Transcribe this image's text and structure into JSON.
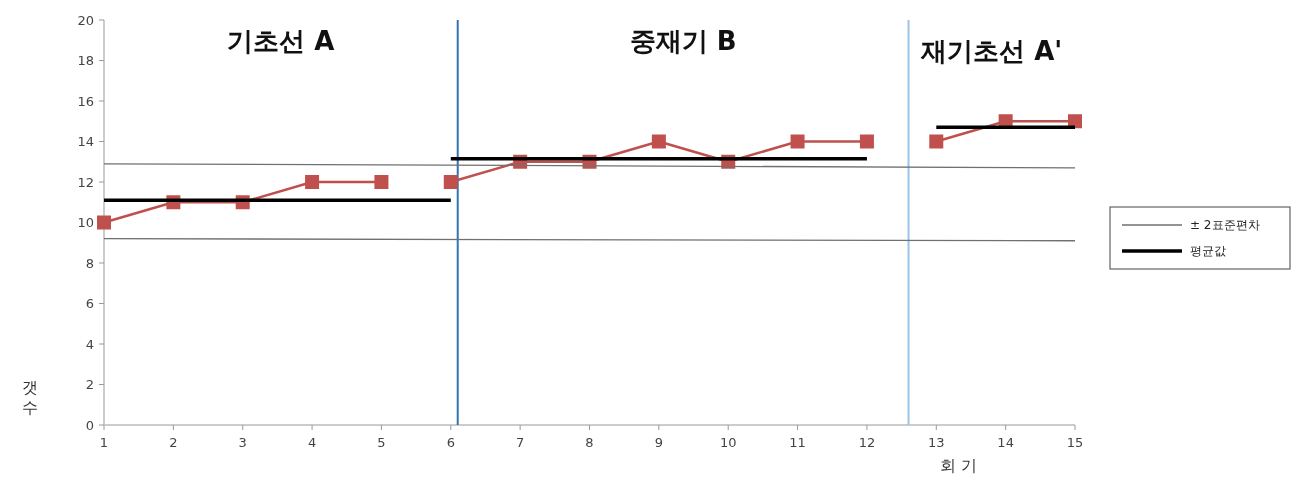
{
  "chart_data": {
    "type": "line",
    "xlabel": "회 기",
    "ylabel": "갯수",
    "xlim": [
      1,
      15
    ],
    "xticks": [
      1,
      2,
      3,
      4,
      5,
      6,
      7,
      8,
      9,
      10,
      11,
      12,
      13,
      14,
      15
    ],
    "ylim": [
      0,
      20
    ],
    "yticks": [
      0,
      2,
      4,
      6,
      8,
      10,
      12,
      14,
      16,
      18,
      20
    ],
    "grid": false,
    "legend": "right",
    "line_style": "solid",
    "series": [
      {
        "color": "#c0504d",
        "marker": "square",
        "x": [
          1,
          2,
          3,
          4,
          5
        ],
        "values": [
          10,
          11,
          11,
          12,
          12
        ]
      },
      {
        "color": "#c0504d",
        "marker": "square",
        "x": [
          6,
          7,
          8,
          9,
          10,
          11,
          12
        ],
        "values": [
          12,
          13,
          13,
          14,
          13,
          14,
          14
        ]
      },
      {
        "color": "#c0504d",
        "marker": "square",
        "x": [
          13,
          14,
          15
        ],
        "values": [
          14,
          15,
          15
        ]
      },
      {
        "name": "± 2표준편차",
        "color": "#707070",
        "marker": "none",
        "x": [
          1,
          15
        ],
        "values": [
          12.9,
          12.7
        ]
      },
      {
        "color": "#707070",
        "marker": "none",
        "x": [
          1,
          15
        ],
        "values": [
          9.2,
          9.1
        ]
      },
      {
        "name": "평균값",
        "color": "#000000",
        "marker": "none",
        "x": [
          1,
          6
        ],
        "values": [
          11.1,
          11.1
        ]
      },
      {
        "color": "#000000",
        "marker": "none",
        "x": [
          6,
          12
        ],
        "values": [
          13.15,
          13.15
        ]
      },
      {
        "color": "#000000",
        "marker": "none",
        "x": [
          13,
          15
        ],
        "values": [
          14.7,
          14.7
        ]
      }
    ],
    "ref_lines": [
      {
        "axis": "x",
        "value": 6.1,
        "color": "#2e75b6"
      },
      {
        "axis": "x",
        "value": 12.6,
        "color": "#9dc3e6"
      }
    ],
    "annotations": [
      "기초선  A",
      "중재기  B",
      "재기초선  A'"
    ]
  }
}
